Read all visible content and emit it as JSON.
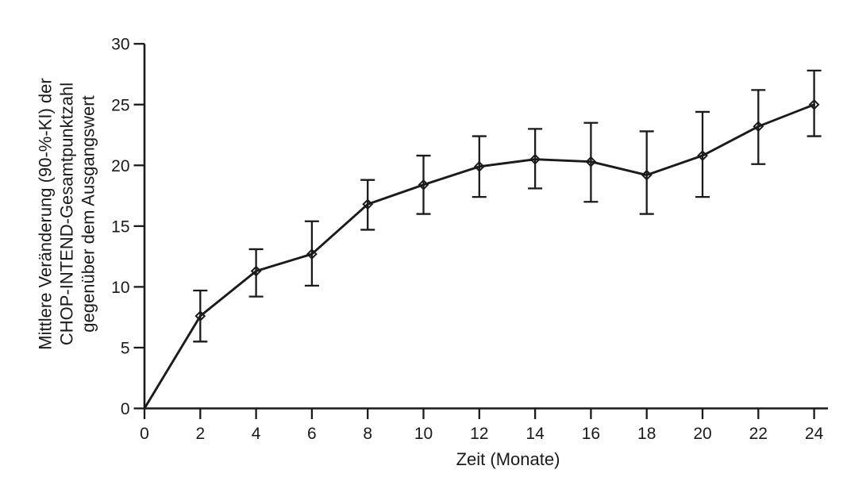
{
  "chart_data": {
    "type": "line",
    "title": "",
    "xlabel": "Zeit (Monate)",
    "ylabel_lines": [
      "Mittlere Veränderung (90-%-KI) der",
      "CHOP-INTEND-Gesamtpunktzahl",
      "gegenüber dem Ausgangswert"
    ],
    "x": [
      0,
      2,
      4,
      6,
      8,
      10,
      12,
      14,
      16,
      18,
      20,
      22,
      24
    ],
    "series": [
      {
        "name": "Mittlere Veränderung der CHOP-INTEND-Gesamtpunktzahl",
        "values": [
          0,
          7.6,
          11.3,
          12.7,
          16.8,
          18.4,
          19.9,
          20.5,
          20.3,
          19.2,
          20.8,
          23.2,
          25.0
        ],
        "ci_low": [
          null,
          5.5,
          9.2,
          10.1,
          14.7,
          16.0,
          17.4,
          18.1,
          17.0,
          16.0,
          17.4,
          20.1,
          22.4
        ],
        "ci_high": [
          null,
          9.7,
          13.1,
          15.4,
          18.8,
          20.8,
          22.4,
          23.0,
          23.5,
          22.8,
          24.4,
          26.2,
          27.8
        ]
      }
    ],
    "xlim": [
      0,
      24
    ],
    "ylim": [
      0,
      30
    ],
    "x_ticks": [
      0,
      2,
      4,
      6,
      8,
      10,
      12,
      14,
      16,
      18,
      20,
      22,
      24
    ],
    "y_ticks": [
      0,
      5,
      10,
      15,
      20,
      25,
      30
    ],
    "grid": false,
    "legend": false,
    "marker": "open-diamond",
    "error_bars": "90% confidence interval",
    "line_color": "#1a1a1a",
    "background_color": "#ffffff"
  }
}
